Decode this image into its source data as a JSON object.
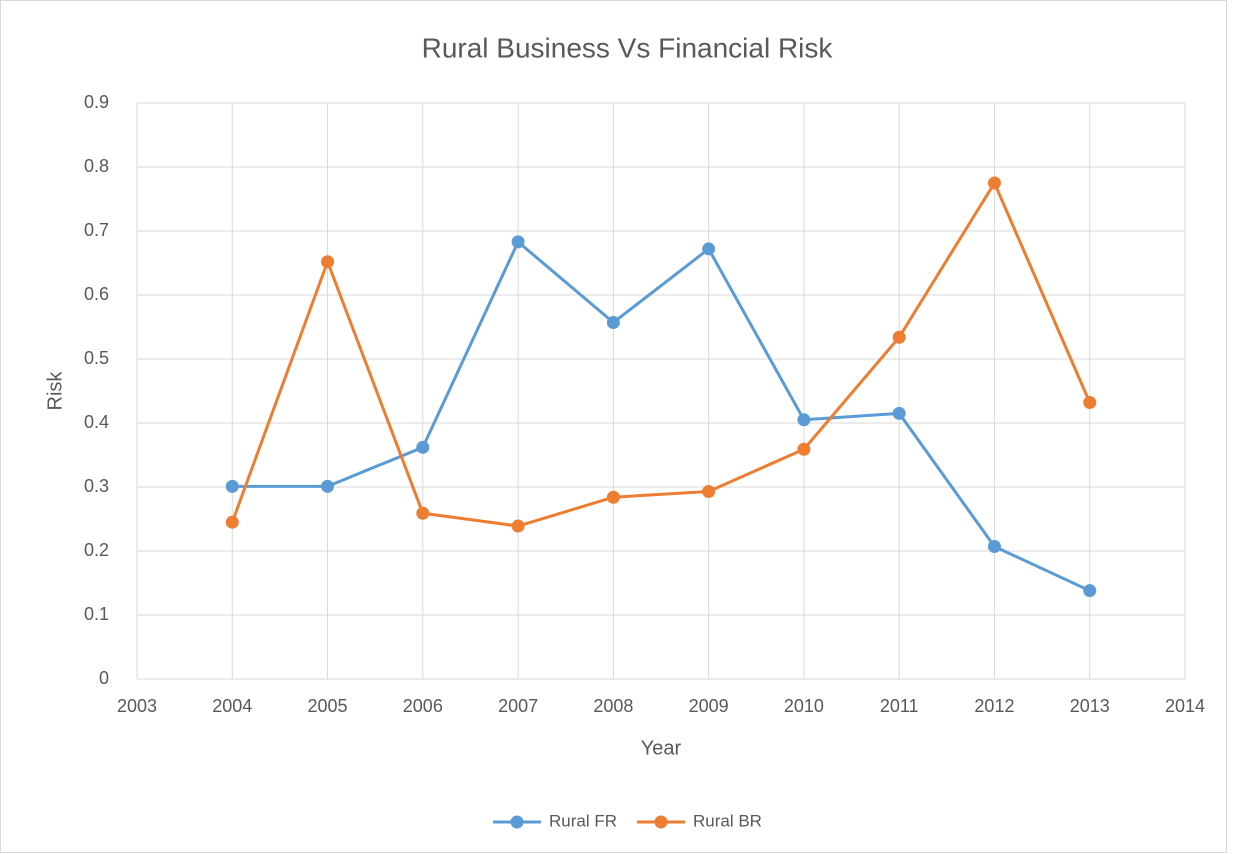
{
  "chart_data": {
    "type": "line",
    "title": "Rural Business Vs Financial Risk",
    "x_label": "Year",
    "y_label": "Risk",
    "x": [
      2004,
      2005,
      2006,
      2007,
      2008,
      2009,
      2010,
      2011,
      2012,
      2013
    ],
    "series": [
      {
        "name": "Rural FR",
        "color": "#5b9bd5",
        "values": [
          0.301,
          0.301,
          0.362,
          0.683,
          0.557,
          0.672,
          0.405,
          0.415,
          0.207,
          0.138
        ]
      },
      {
        "name": "Rural BR",
        "color": "#ed7d31",
        "values": [
          0.245,
          0.652,
          0.259,
          0.239,
          0.284,
          0.293,
          0.359,
          0.534,
          0.775,
          0.432
        ]
      }
    ],
    "xlim": [
      2003,
      2014
    ],
    "xticks": [
      2003,
      2004,
      2005,
      2006,
      2007,
      2008,
      2009,
      2010,
      2011,
      2012,
      2013,
      2014
    ],
    "ylim": [
      0,
      0.9
    ],
    "yticks": [
      0,
      0.1,
      0.2,
      0.3,
      0.4,
      0.5,
      0.6,
      0.7,
      0.8,
      0.9
    ],
    "grid": true,
    "legend": "bottom"
  }
}
